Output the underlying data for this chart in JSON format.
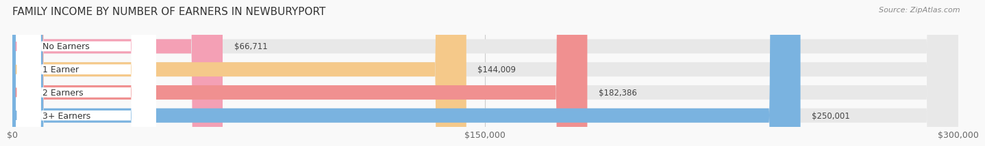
{
  "title": "FAMILY INCOME BY NUMBER OF EARNERS IN NEWBURYPORT",
  "source": "Source: ZipAtlas.com",
  "categories": [
    "No Earners",
    "1 Earner",
    "2 Earners",
    "3+ Earners"
  ],
  "values": [
    66711,
    144009,
    182386,
    250001
  ],
  "bar_colors": [
    "#f4a0b5",
    "#f5c98a",
    "#f09090",
    "#7ab3e0"
  ],
  "bar_bg_color": "#e8e8e8",
  "value_labels": [
    "$66,711",
    "$144,009",
    "$182,386",
    "$250,001"
  ],
  "xmax": 300000,
  "xtick_labels": [
    "$0",
    "$150,000",
    "$300,000"
  ],
  "background_color": "#f9f9f9",
  "title_fontsize": 11,
  "figsize": [
    14.06,
    2.33
  ]
}
